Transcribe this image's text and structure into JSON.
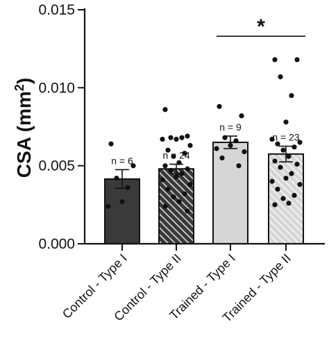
{
  "chart_data": {
    "type": "bar",
    "ylabel_main": "CSA (mm",
    "ylabel_sup": "2",
    "ylabel_close": ")",
    "ylim": [
      0,
      0.015
    ],
    "yticks": [
      "0.000",
      "0.005",
      "0.010",
      "0.015"
    ],
    "ytick_values": [
      0,
      0.005,
      0.01,
      0.015
    ],
    "categories": [
      "Control - Type I",
      "Control - Type II",
      "Trained - Type I",
      "Trained - Type II"
    ],
    "values": [
      0.00415,
      0.0048,
      0.0065,
      0.00575
    ],
    "errors": [
      0.0006,
      0.0003,
      0.0004,
      0.0005
    ],
    "n_labels": [
      "n = 6",
      "n = 24",
      "n = 9",
      "n = 23"
    ],
    "bar_fills": [
      "#3a3a3a",
      "#3a3a3a",
      "#d6d6d6",
      "#d6d6d6"
    ],
    "bar_hatched": [
      false,
      true,
      false,
      true
    ],
    "points": [
      [
        0.0064,
        0.005,
        0.0042,
        0.0036,
        0.0027,
        0.0024
      ],
      [
        0.0086,
        0.0069,
        0.0068,
        0.0068,
        0.0067,
        0.0067,
        0.0063,
        0.006,
        0.0058,
        0.0056,
        0.0052,
        0.005,
        0.0048,
        0.0047,
        0.0045,
        0.0043,
        0.0041,
        0.0038,
        0.0035,
        0.0032,
        0.003,
        0.0027,
        0.0024,
        0.0021
      ],
      [
        0.0088,
        0.0082,
        0.0068,
        0.0066,
        0.0063,
        0.0061,
        0.0059,
        0.0055,
        0.005
      ],
      [
        0.0118,
        0.0118,
        0.0107,
        0.0095,
        0.0078,
        0.0067,
        0.0065,
        0.0064,
        0.0062,
        0.006,
        0.0056,
        0.0053,
        0.0051,
        0.0049,
        0.0045,
        0.0042,
        0.004,
        0.0038,
        0.0035,
        0.0031,
        0.0029,
        0.0026,
        0.0025
      ]
    ],
    "significance": {
      "from": 2,
      "to": 3,
      "label": "*",
      "y": 0.0133
    },
    "legend": "none",
    "grid": false
  }
}
